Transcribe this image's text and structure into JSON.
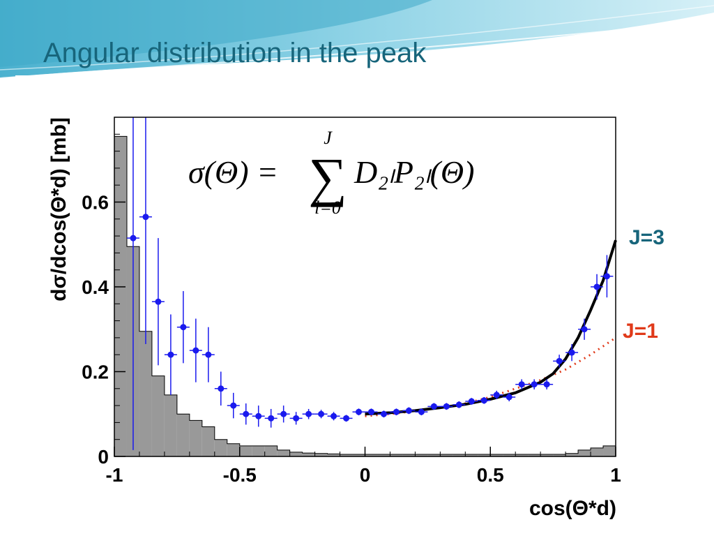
{
  "slide": {
    "title": "Angular distribution in the peak",
    "title_color": "#17657b"
  },
  "chart_data": {
    "type": "scatter",
    "xlabel": "cos(Θ*d)",
    "ylabel": "dσ/dcos(Θ*d) [mb]",
    "xlim": [
      -1,
      1
    ],
    "ylim": [
      0,
      0.8
    ],
    "xticks": [
      "-1",
      "-0.5",
      "0",
      "0.5",
      "1"
    ],
    "yticks": [
      "0",
      "0.2",
      "0.4",
      "0.6"
    ],
    "grid": false,
    "formula": {
      "lhs": "σ(Θ) =",
      "sum_symbol": "∑",
      "sum_upper": "J",
      "sum_lower": "l=0",
      "rhs": "D₂ₗP₂ₗ(Θ)"
    },
    "annotations": [
      {
        "label": "J=3",
        "color": "#17657b"
      },
      {
        "label": "J=1",
        "color": "#e03a1a"
      }
    ],
    "histogram": {
      "color": "#999999",
      "edge_color": "#000000",
      "bin_width": 0.05,
      "bins": [
        {
          "x0": -1.0,
          "y": 0.755
        },
        {
          "x0": -0.95,
          "y": 0.495
        },
        {
          "x0": -0.9,
          "y": 0.295
        },
        {
          "x0": -0.85,
          "y": 0.19
        },
        {
          "x0": -0.8,
          "y": 0.145
        },
        {
          "x0": -0.75,
          "y": 0.1
        },
        {
          "x0": -0.7,
          "y": 0.085
        },
        {
          "x0": -0.65,
          "y": 0.07
        },
        {
          "x0": -0.6,
          "y": 0.04
        },
        {
          "x0": -0.55,
          "y": 0.03
        },
        {
          "x0": -0.5,
          "y": 0.025
        },
        {
          "x0": -0.45,
          "y": 0.025
        },
        {
          "x0": -0.4,
          "y": 0.025
        },
        {
          "x0": -0.35,
          "y": 0.015
        },
        {
          "x0": -0.3,
          "y": 0.01
        },
        {
          "x0": -0.25,
          "y": 0.008
        },
        {
          "x0": -0.2,
          "y": 0.007
        },
        {
          "x0": -0.15,
          "y": 0.006
        },
        {
          "x0": -0.1,
          "y": 0.005
        },
        {
          "x0": -0.05,
          "y": 0.005
        },
        {
          "x0": 0.0,
          "y": 0.005
        },
        {
          "x0": 0.05,
          "y": 0.005
        },
        {
          "x0": 0.1,
          "y": 0.005
        },
        {
          "x0": 0.15,
          "y": 0.005
        },
        {
          "x0": 0.2,
          "y": 0.005
        },
        {
          "x0": 0.25,
          "y": 0.005
        },
        {
          "x0": 0.3,
          "y": 0.005
        },
        {
          "x0": 0.35,
          "y": 0.005
        },
        {
          "x0": 0.4,
          "y": 0.005
        },
        {
          "x0": 0.45,
          "y": 0.005
        },
        {
          "x0": 0.5,
          "y": 0.005
        },
        {
          "x0": 0.55,
          "y": 0.005
        },
        {
          "x0": 0.6,
          "y": 0.005
        },
        {
          "x0": 0.65,
          "y": 0.005
        },
        {
          "x0": 0.7,
          "y": 0.005
        },
        {
          "x0": 0.75,
          "y": 0.005
        },
        {
          "x0": 0.8,
          "y": 0.007
        },
        {
          "x0": 0.85,
          "y": 0.015
        },
        {
          "x0": 0.9,
          "y": 0.02
        },
        {
          "x0": 0.95,
          "y": 0.025
        }
      ]
    },
    "data_points": {
      "color": "#1a1aee",
      "points": [
        {
          "x": -0.925,
          "y": 0.515,
          "err": 0.5
        },
        {
          "x": -0.875,
          "y": 0.565,
          "err": 0.3
        },
        {
          "x": -0.825,
          "y": 0.365,
          "err": 0.15
        },
        {
          "x": -0.775,
          "y": 0.24,
          "err": 0.095
        },
        {
          "x": -0.725,
          "y": 0.305,
          "err": 0.085
        },
        {
          "x": -0.675,
          "y": 0.25,
          "err": 0.075
        },
        {
          "x": -0.625,
          "y": 0.24,
          "err": 0.065
        },
        {
          "x": -0.575,
          "y": 0.16,
          "err": 0.04
        },
        {
          "x": -0.525,
          "y": 0.12,
          "err": 0.03
        },
        {
          "x": -0.475,
          "y": 0.1,
          "err": 0.025
        },
        {
          "x": -0.425,
          "y": 0.095,
          "err": 0.025
        },
        {
          "x": -0.375,
          "y": 0.09,
          "err": 0.022
        },
        {
          "x": -0.325,
          "y": 0.1,
          "err": 0.02
        },
        {
          "x": -0.275,
          "y": 0.09,
          "err": 0.015
        },
        {
          "x": -0.225,
          "y": 0.1,
          "err": 0.012
        },
        {
          "x": -0.175,
          "y": 0.1,
          "err": 0.01
        },
        {
          "x": -0.125,
          "y": 0.095,
          "err": 0.01
        },
        {
          "x": -0.075,
          "y": 0.09,
          "err": 0.008
        },
        {
          "x": -0.025,
          "y": 0.105,
          "err": 0.008
        },
        {
          "x": 0.025,
          "y": 0.105,
          "err": 0.008
        },
        {
          "x": 0.075,
          "y": 0.1,
          "err": 0.008
        },
        {
          "x": 0.125,
          "y": 0.105,
          "err": 0.008
        },
        {
          "x": 0.175,
          "y": 0.108,
          "err": 0.008
        },
        {
          "x": 0.225,
          "y": 0.105,
          "err": 0.008
        },
        {
          "x": 0.275,
          "y": 0.118,
          "err": 0.008
        },
        {
          "x": 0.325,
          "y": 0.118,
          "err": 0.008
        },
        {
          "x": 0.375,
          "y": 0.122,
          "err": 0.008
        },
        {
          "x": 0.425,
          "y": 0.13,
          "err": 0.008
        },
        {
          "x": 0.475,
          "y": 0.132,
          "err": 0.008
        },
        {
          "x": 0.525,
          "y": 0.145,
          "err": 0.01
        },
        {
          "x": 0.575,
          "y": 0.14,
          "err": 0.01
        },
        {
          "x": 0.625,
          "y": 0.17,
          "err": 0.012
        },
        {
          "x": 0.675,
          "y": 0.17,
          "err": 0.012
        },
        {
          "x": 0.725,
          "y": 0.17,
          "err": 0.012
        },
        {
          "x": 0.775,
          "y": 0.225,
          "err": 0.015
        },
        {
          "x": 0.825,
          "y": 0.245,
          "err": 0.02
        },
        {
          "x": 0.875,
          "y": 0.3,
          "err": 0.025
        },
        {
          "x": 0.925,
          "y": 0.4,
          "err": 0.03
        },
        {
          "x": 0.965,
          "y": 0.425,
          "err": 0.05
        }
      ]
    },
    "fit_curves": [
      {
        "label": "J=3",
        "color": "#000000",
        "style": "solid",
        "x": [
          0.0,
          0.1,
          0.2,
          0.3,
          0.4,
          0.5,
          0.6,
          0.7,
          0.75,
          0.8,
          0.85,
          0.9,
          0.95,
          1.0
        ],
        "y": [
          0.1,
          0.103,
          0.108,
          0.115,
          0.123,
          0.135,
          0.15,
          0.175,
          0.195,
          0.23,
          0.28,
          0.345,
          0.415,
          0.51
        ]
      },
      {
        "label": "J=1",
        "color": "#e03a1a",
        "style": "dotted",
        "x": [
          0.0,
          0.1,
          0.2,
          0.3,
          0.4,
          0.5,
          0.6,
          0.7,
          0.8,
          0.9,
          1.0
        ],
        "y": [
          0.095,
          0.1,
          0.107,
          0.115,
          0.125,
          0.14,
          0.16,
          0.18,
          0.205,
          0.24,
          0.28
        ]
      }
    ]
  }
}
